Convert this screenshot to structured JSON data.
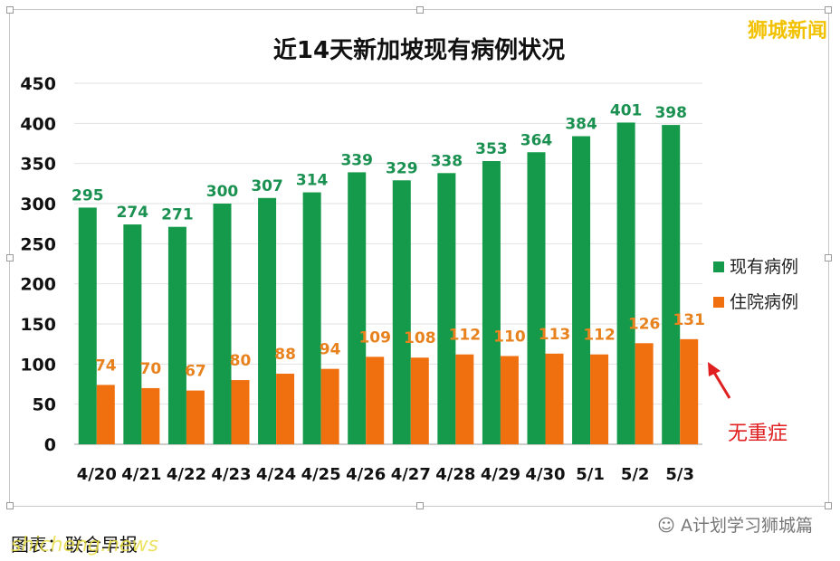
{
  "header": {
    "watermark": "狮城新闻"
  },
  "chart_data": {
    "type": "bar",
    "title": "近14天新加坡现有病例状况",
    "categories": [
      "4/20",
      "4/21",
      "4/22",
      "4/23",
      "4/24",
      "4/25",
      "4/26",
      "4/27",
      "4/28",
      "4/29",
      "4/30",
      "5/1",
      "5/2",
      "5/3"
    ],
    "series": [
      {
        "name": "现有病例",
        "color": "#149a4a",
        "label_color": "#1a9150",
        "values": [
          295,
          274,
          271,
          300,
          307,
          314,
          339,
          329,
          338,
          353,
          364,
          384,
          401,
          398
        ]
      },
      {
        "name": "住院病例",
        "color": "#f07010",
        "label_color": "#e8821e",
        "values": [
          74,
          70,
          67,
          80,
          88,
          94,
          109,
          108,
          112,
          110,
          113,
          112,
          126,
          131
        ]
      }
    ],
    "ylim": [
      0,
      450
    ],
    "yticks": [
      0,
      50,
      100,
      150,
      200,
      250,
      300,
      350,
      400,
      450
    ],
    "grid": true,
    "legend": "right",
    "annotation": {
      "text": "无重症",
      "color": "#e02020"
    }
  },
  "footer": {
    "caption": "图表：联合早报",
    "watermark": "shicheng.news",
    "wechat_label": "A计划学习狮城篇"
  }
}
